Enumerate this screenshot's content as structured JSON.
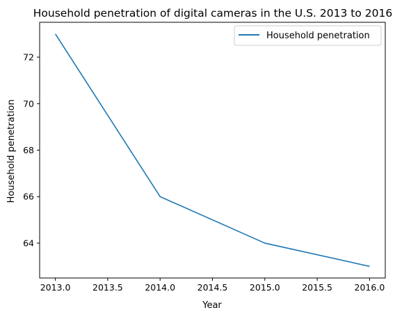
{
  "chart_data": {
    "type": "line",
    "title": "Household penetration of digital cameras in the U.S. 2013 to 2016",
    "xlabel": "Year",
    "ylabel": "Household penetration",
    "x": [
      2013.0,
      2014.0,
      2015.0,
      2016.0
    ],
    "series": [
      {
        "name": "Household penetration",
        "values": [
          73,
          66,
          64,
          63
        ],
        "color": "#1f77b4"
      }
    ],
    "xlim": [
      2012.85,
      2016.15
    ],
    "ylim": [
      62.5,
      73.5
    ],
    "xticks": [
      "2013.0",
      "2013.5",
      "2014.0",
      "2014.5",
      "2015.0",
      "2015.5",
      "2016.0"
    ],
    "yticks": [
      "64",
      "66",
      "68",
      "70",
      "72"
    ],
    "grid": false,
    "legend_position": "top-right"
  }
}
